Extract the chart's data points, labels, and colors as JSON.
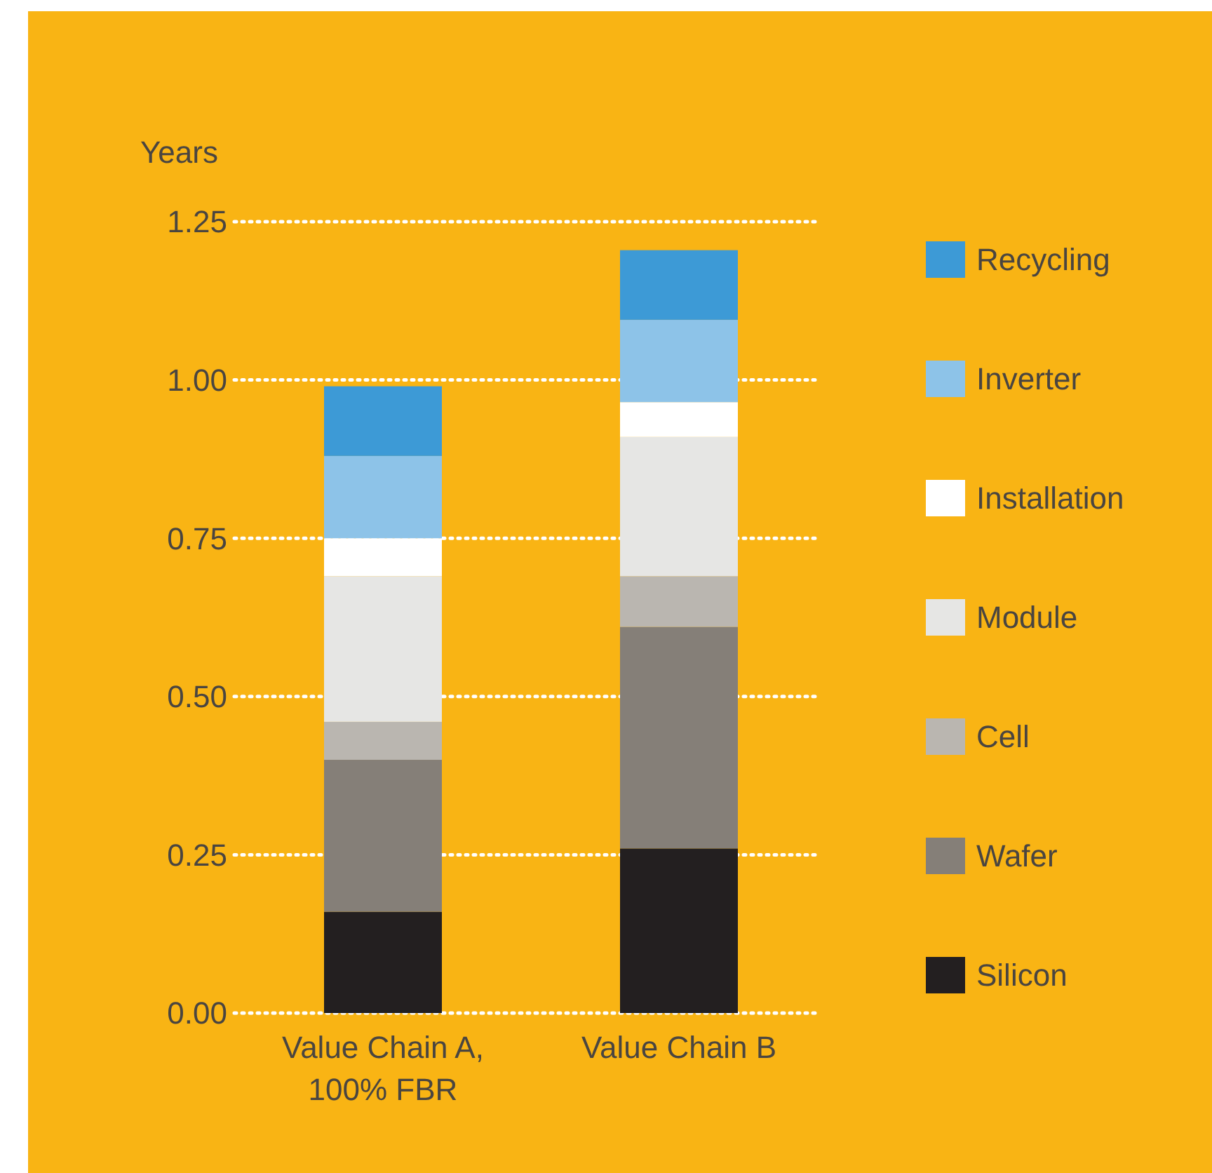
{
  "chart_data": {
    "type": "bar",
    "stacked": true,
    "ylabel": "Years",
    "categories": [
      "Value Chain A, 100% FBR",
      "Value Chain B"
    ],
    "series": [
      {
        "name": "Silicon",
        "color": "#231f20",
        "values": [
          0.16,
          0.26
        ]
      },
      {
        "name": "Wafer",
        "color": "#857f78",
        "values": [
          0.24,
          0.35
        ]
      },
      {
        "name": "Cell",
        "color": "#bab6b0",
        "values": [
          0.06,
          0.08
        ]
      },
      {
        "name": "Module",
        "color": "#e6e6e4",
        "values": [
          0.23,
          0.22
        ]
      },
      {
        "name": "Installation",
        "color": "#ffffff",
        "values": [
          0.06,
          0.055
        ]
      },
      {
        "name": "Inverter",
        "color": "#8dc3e8",
        "values": [
          0.13,
          0.13
        ]
      },
      {
        "name": "Recycling",
        "color": "#3d9ad6",
        "values": [
          0.11,
          0.11
        ]
      }
    ],
    "ylim": [
      0,
      1.25
    ],
    "yticks": [
      {
        "value": 0,
        "label": "0.00"
      },
      {
        "value": 0.25,
        "label": "0.25"
      },
      {
        "value": 0.5,
        "label": "0.50"
      },
      {
        "value": 0.75,
        "label": "0.75"
      },
      {
        "value": 1,
        "label": "1.00"
      },
      {
        "value": 1.25,
        "label": "1.25"
      }
    ],
    "grid": "y",
    "legend": "right"
  }
}
